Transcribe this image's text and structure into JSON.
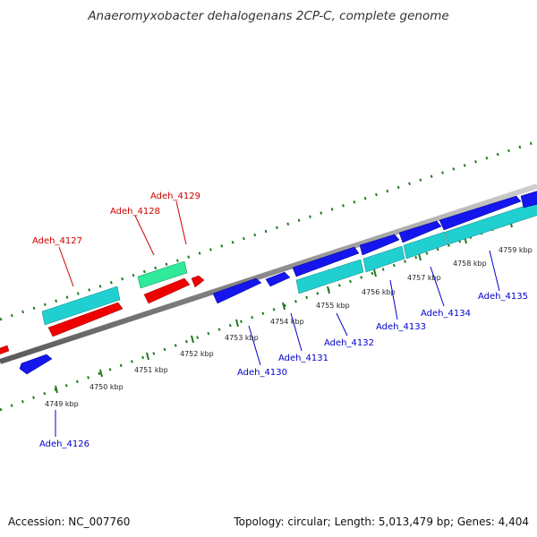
{
  "title": "Anaeromyxobacter dehalogenans 2CP-C, complete genome",
  "footer": {
    "accession": "Accession: NC_007760",
    "summary": "Topology: circular; Length: 5,013,479 bp; Genes: 4,404"
  },
  "colors": {
    "backbone": "#999999",
    "tick": "#1f7a1f",
    "forward_gene": "#0000ee",
    "cds_turquoise": "#20d0d0",
    "rna_red": "#ee0000",
    "rna_green": "#2eea9a",
    "label_red": "#cc0000",
    "label_blue": "#0000cc"
  },
  "kbp_marks": [
    "4749 kbp",
    "4750 kbp",
    "4751 kbp",
    "4752 kbp",
    "4753 kbp",
    "4754 kbp",
    "4755 kbp",
    "4756 kbp",
    "4757 kbp",
    "4758 kbp",
    "4759 kbp"
  ],
  "gene_labels": [
    {
      "text": "Adeh_4127",
      "color": "red"
    },
    {
      "text": "Adeh_4128",
      "color": "red"
    },
    {
      "text": "Adeh_4129",
      "color": "red"
    },
    {
      "text": "Adeh_4126",
      "color": "blue"
    },
    {
      "text": "Adeh_4130",
      "color": "blue"
    },
    {
      "text": "Adeh_4131",
      "color": "blue"
    },
    {
      "text": "Adeh_4132",
      "color": "blue"
    },
    {
      "text": "Adeh_4133",
      "color": "blue"
    },
    {
      "text": "Adeh_4134",
      "color": "blue"
    },
    {
      "text": "Adeh_4135",
      "color": "blue"
    }
  ]
}
